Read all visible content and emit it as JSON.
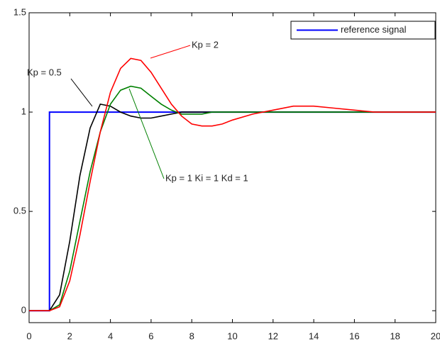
{
  "chart_data": {
    "type": "line",
    "x": [
      0,
      1,
      1.5,
      2,
      2.5,
      3,
      3.5,
      4,
      4.5,
      5,
      5.5,
      6,
      6.5,
      7,
      7.5,
      8,
      8.5,
      9,
      9.5,
      10,
      11,
      12,
      13,
      14,
      15,
      16,
      17,
      18,
      19,
      20
    ],
    "series": [
      {
        "name": "reference signal",
        "color": "#0000ff",
        "x": [
          0,
          1,
          1,
          20
        ],
        "values": [
          0,
          0,
          1,
          1
        ]
      },
      {
        "color": "#000000",
        "values": [
          0,
          0,
          0.08,
          0.35,
          0.68,
          0.92,
          1.04,
          1.03,
          1.0,
          0.98,
          0.97,
          0.97,
          0.98,
          0.99,
          1,
          1,
          1,
          1,
          1,
          1,
          1,
          1,
          1,
          1,
          1,
          1,
          1,
          1,
          1,
          1
        ]
      },
      {
        "color": "#008000",
        "values": [
          0,
          0,
          0.03,
          0.2,
          0.45,
          0.7,
          0.9,
          1.04,
          1.11,
          1.13,
          1.12,
          1.08,
          1.04,
          1.01,
          0.99,
          0.99,
          0.99,
          1,
          1,
          1,
          1,
          1,
          1,
          1,
          1,
          1,
          1,
          1,
          1,
          1
        ]
      },
      {
        "color": "#ff0000",
        "values": [
          0,
          0,
          0.02,
          0.15,
          0.38,
          0.65,
          0.9,
          1.1,
          1.22,
          1.27,
          1.26,
          1.2,
          1.12,
          1.04,
          0.98,
          0.94,
          0.93,
          0.93,
          0.94,
          0.96,
          0.99,
          1.01,
          1.03,
          1.03,
          1.02,
          1.01,
          1,
          1,
          1,
          1
        ]
      }
    ],
    "annotations": [
      "Kp = 2",
      "Kp = 0.5",
      "Kp = 1  Ki = 1  Kd = 1"
    ],
    "xlim": [
      0,
      20
    ],
    "xticks": [
      0,
      2,
      4,
      6,
      8,
      10,
      12,
      14,
      16,
      18,
      20
    ],
    "ylim": [
      -0.06,
      1.5
    ],
    "yticks": [
      0,
      0.5,
      1,
      1.5
    ],
    "grid": false,
    "legend": "upper right"
  }
}
